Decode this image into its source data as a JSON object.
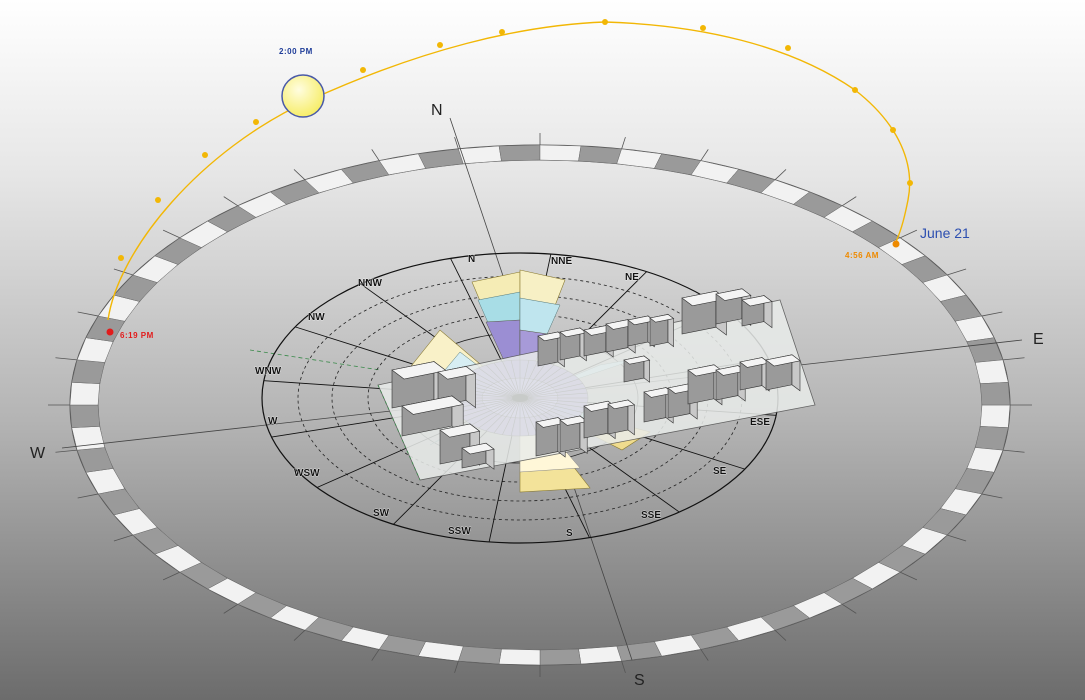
{
  "labels": {
    "time_noon": "2:00 PM",
    "date": "June 21",
    "time_sunrise": "4:56 AM",
    "time_sunset": "6:19 PM"
  },
  "cardinals": {
    "n": "N",
    "e": "E",
    "s": "S",
    "w": "W"
  },
  "compass_directions": {
    "n": "N",
    "nne": "NNE",
    "ne": "NE",
    "ese": "ESE",
    "se": "SE",
    "sse": "SSE",
    "s": "S",
    "ssw": "SSW",
    "sw": "SW",
    "wsw": "WSW",
    "w": "W",
    "wnw": "WNW",
    "nw": "NW",
    "nnw": "NNW"
  },
  "colors": {
    "sun_path": "#f2b705",
    "sun_fill": "#fff79a",
    "time_noon": "#1f3d99",
    "date": "#2d4fb0",
    "time_sunrise": "#ee8a00",
    "time_sunset": "#e21b1b",
    "background_top": "#ffffff",
    "background_bottom": "#6f6f6f"
  }
}
